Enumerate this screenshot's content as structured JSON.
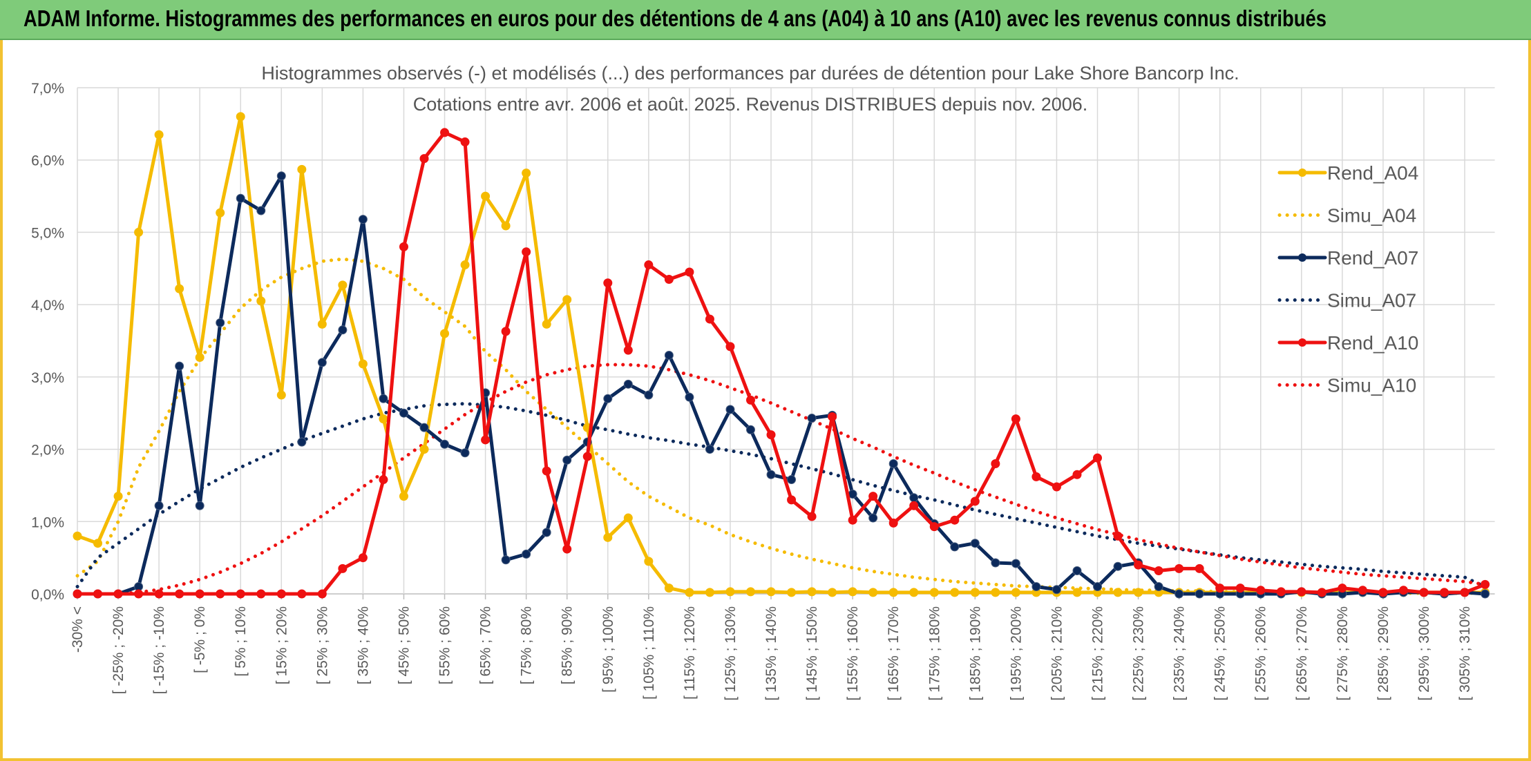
{
  "banner": {
    "title": "ADAM Informe. Histogrammes des performances en euros pour des détentions de 4 ans (A04) à 10 ans (A10) avec les revenus connus distribués"
  },
  "chart_data": {
    "type": "line",
    "title": "Histogrammes observés (-) et modélisés (...) des performances par durées de détention pour Lake Shore Bancorp Inc.",
    "subtitle": "Cotations entre avr. 2006 et août. 2025. Revenus DISTRIBUES depuis nov. 2006.",
    "ylim": [
      0,
      7
    ],
    "yticks": [
      "0,0%",
      "1,0%",
      "2,0%",
      "3,0%",
      "4,0%",
      "5,0%",
      "6,0%",
      "7,0%"
    ],
    "x_labels": [
      "-30% <",
      "[ -25% ; -20%",
      "[ -15% ; -10%",
      "[ -5% ; 0%",
      "[ 5% ; 10%",
      "[ 15% ; 20%",
      "[ 25% ; 30%",
      "[ 35% ; 40%",
      "[ 45% ; 50%",
      "[ 55% ; 60%",
      "[ 65% ; 70%",
      "[ 75% ; 80%",
      "[ 85% ; 90%",
      "[ 95% ; 100%",
      "[ 105% ; 110%",
      "[ 115% ; 120%",
      "[ 125% ; 130%",
      "[ 135% ; 140%",
      "[ 145% ; 150%",
      "[ 155% ; 160%",
      "[ 165% ; 170%",
      "[ 175% ; 180%",
      "[ 185% ; 190%",
      "[ 195% ; 200%",
      "[ 205% ; 210%",
      "[ 215% ; 220%",
      "[ 225% ; 230%",
      "[ 235% ; 240%",
      "[ 245% ; 250%",
      "[ 255% ; 260%",
      "[ 265% ; 270%",
      "[ 275% ; 280%",
      "[ 285% ; 290%",
      "[ 295% ; 300%",
      "[ 305% ; 310%"
    ],
    "n_points": 70,
    "grid": true,
    "legend_position": "right",
    "series": [
      {
        "name": "Rend_A04",
        "color": "#f5bb00",
        "style": "solid",
        "values": [
          0.8,
          0.7,
          1.35,
          5.0,
          6.35,
          4.22,
          3.27,
          5.27,
          6.6,
          4.05,
          2.75,
          5.87,
          3.73,
          4.27,
          3.18,
          2.42,
          1.35,
          2.0,
          3.6,
          4.55,
          5.5,
          5.09,
          5.82,
          3.73,
          4.07,
          2.3,
          0.78,
          1.05,
          0.45,
          0.08,
          0.02,
          0.02,
          0.03,
          0.03,
          0.03,
          0.02,
          0.03,
          0.02,
          0.03,
          0.02,
          0.02,
          0.02,
          0.02,
          0.02,
          0.02,
          0.02,
          0.02,
          0.02,
          0.02,
          0.02,
          0.02,
          0.02,
          0.02,
          0.02,
          0.02,
          0.02,
          0.02,
          0.02,
          0.02,
          0.02,
          0.02,
          0.02,
          0.02,
          0.02,
          0.02,
          0.02,
          0.02,
          0.02,
          0.02,
          0.02
        ]
      },
      {
        "name": "Simu_A04",
        "color": "#f5bb00",
        "style": "dotted",
        "values": [
          0.25,
          0.45,
          1.0,
          1.75,
          2.25,
          2.8,
          3.25,
          3.6,
          3.95,
          4.2,
          4.38,
          4.5,
          4.6,
          4.63,
          4.6,
          4.5,
          4.35,
          4.1,
          3.9,
          3.7,
          3.35,
          3.1,
          2.8,
          2.55,
          2.3,
          2.05,
          1.8,
          1.55,
          1.35,
          1.2,
          1.05,
          0.95,
          0.82,
          0.72,
          0.63,
          0.55,
          0.48,
          0.42,
          0.36,
          0.31,
          0.27,
          0.23,
          0.2,
          0.17,
          0.15,
          0.13,
          0.11,
          0.1,
          0.09,
          0.08,
          0.07,
          0.06,
          0.05,
          0.05,
          0.04,
          0.04,
          0.03,
          0.03,
          0.03,
          0.02,
          0.02,
          0.02,
          0.02,
          0.02,
          0.02,
          0.01,
          0.01,
          0.01,
          0.01,
          0.01
        ]
      },
      {
        "name": "Rend_A07",
        "color": "#0c2a5c",
        "style": "solid",
        "values": [
          0.0,
          0.0,
          0.0,
          0.1,
          1.22,
          3.15,
          1.22,
          3.75,
          5.47,
          5.3,
          5.78,
          2.1,
          3.2,
          3.65,
          5.18,
          2.7,
          2.5,
          2.3,
          2.07,
          1.95,
          2.78,
          0.47,
          0.55,
          0.85,
          1.85,
          2.1,
          2.7,
          2.9,
          2.75,
          3.3,
          2.72,
          2.0,
          2.55,
          2.27,
          1.65,
          1.58,
          2.43,
          2.47,
          1.38,
          1.05,
          1.8,
          1.33,
          0.97,
          0.65,
          0.7,
          0.43,
          0.42,
          0.1,
          0.06,
          0.32,
          0.1,
          0.38,
          0.43,
          0.1,
          0.0,
          0.0,
          0.0,
          0.0,
          0.0,
          0.0,
          0.03,
          0.0,
          0.0,
          0.02,
          0.0,
          0.02,
          0.02,
          0.0,
          0.02,
          0.0
        ]
      },
      {
        "name": "Simu_A07",
        "color": "#0c2a5c",
        "style": "dotted",
        "values": [
          0.1,
          0.5,
          0.7,
          0.9,
          1.1,
          1.28,
          1.45,
          1.6,
          1.75,
          1.88,
          2.0,
          2.12,
          2.22,
          2.32,
          2.42,
          2.5,
          2.55,
          2.6,
          2.62,
          2.63,
          2.61,
          2.58,
          2.53,
          2.47,
          2.4,
          2.32,
          2.27,
          2.21,
          2.16,
          2.12,
          2.07,
          2.03,
          1.98,
          1.93,
          1.87,
          1.8,
          1.73,
          1.66,
          1.58,
          1.5,
          1.43,
          1.36,
          1.3,
          1.23,
          1.16,
          1.1,
          1.04,
          0.98,
          0.92,
          0.86,
          0.8,
          0.75,
          0.7,
          0.66,
          0.62,
          0.58,
          0.54,
          0.5,
          0.47,
          0.44,
          0.41,
          0.38,
          0.36,
          0.34,
          0.31,
          0.29,
          0.27,
          0.25,
          0.23,
          0.1
        ]
      },
      {
        "name": "Rend_A10",
        "color": "#ee1111",
        "style": "solid",
        "values": [
          0.0,
          0.0,
          0.0,
          0.0,
          0.0,
          0.0,
          0.0,
          0.0,
          0.0,
          0.0,
          0.0,
          0.0,
          0.0,
          0.35,
          0.5,
          1.58,
          4.8,
          6.02,
          6.38,
          6.25,
          2.13,
          3.63,
          4.73,
          1.7,
          0.62,
          1.9,
          4.3,
          3.37,
          4.55,
          4.35,
          4.45,
          3.8,
          3.42,
          2.68,
          2.2,
          1.3,
          1.07,
          2.45,
          1.02,
          1.35,
          0.98,
          1.22,
          0.93,
          1.02,
          1.28,
          1.8,
          2.42,
          1.62,
          1.48,
          1.65,
          1.88,
          0.8,
          0.4,
          0.32,
          0.35,
          0.35,
          0.08,
          0.08,
          0.05,
          0.03,
          0.03,
          0.02,
          0.08,
          0.05,
          0.02,
          0.05,
          0.02,
          0.02,
          0.02,
          0.13
        ]
      },
      {
        "name": "Simu_A10",
        "color": "#ee1111",
        "style": "dotted",
        "values": [
          0.0,
          0.0,
          0.0,
          0.02,
          0.06,
          0.12,
          0.2,
          0.3,
          0.42,
          0.56,
          0.72,
          0.9,
          1.08,
          1.28,
          1.48,
          1.68,
          1.88,
          2.08,
          2.28,
          2.48,
          2.65,
          2.8,
          2.93,
          3.03,
          3.1,
          3.15,
          3.17,
          3.17,
          3.15,
          3.1,
          3.03,
          2.95,
          2.85,
          2.75,
          2.64,
          2.52,
          2.4,
          2.28,
          2.15,
          2.03,
          1.9,
          1.78,
          1.67,
          1.55,
          1.44,
          1.34,
          1.24,
          1.14,
          1.05,
          0.97,
          0.89,
          0.82,
          0.75,
          0.69,
          0.63,
          0.58,
          0.53,
          0.48,
          0.44,
          0.4,
          0.36,
          0.33,
          0.3,
          0.27,
          0.25,
          0.23,
          0.21,
          0.19,
          0.17,
          0.13
        ]
      }
    ]
  }
}
